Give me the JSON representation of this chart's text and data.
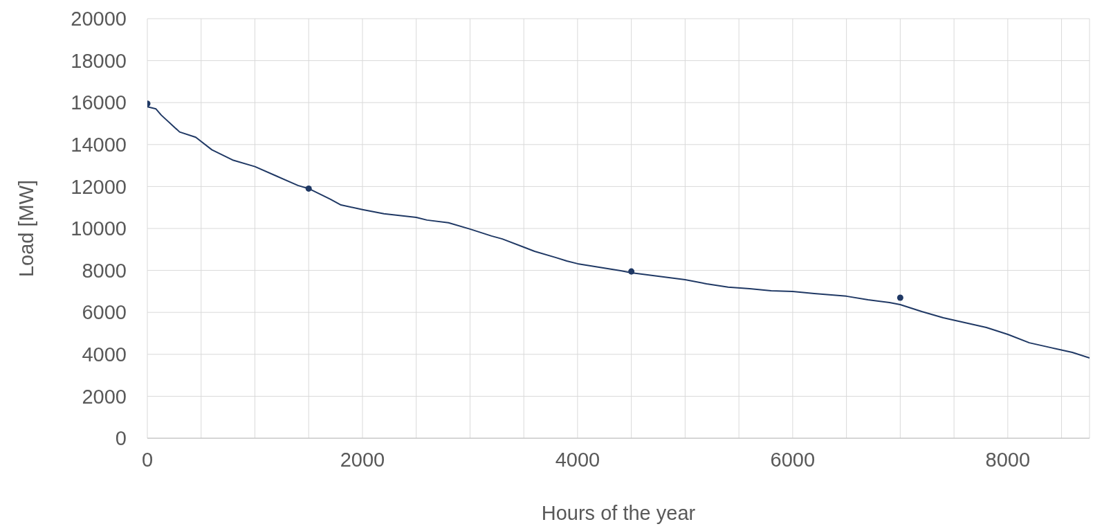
{
  "chart_data": {
    "type": "line",
    "xlabel": "Hours of the year",
    "ylabel": "Load [MW]",
    "xlim": [
      0,
      8760
    ],
    "xticks": [
      0,
      {
        "value": 500,
        "label": null
      },
      {
        "value": 1000,
        "label": null
      },
      {
        "value": 1500,
        "label": null
      },
      2000,
      {
        "value": 2500,
        "label": null
      },
      {
        "value": 3000,
        "label": null
      },
      {
        "value": 3500,
        "label": null
      },
      4000,
      {
        "value": 4500,
        "label": null
      },
      {
        "value": 5000,
        "label": null
      },
      {
        "value": 5500,
        "label": null
      },
      6000,
      {
        "value": 6500,
        "label": null
      },
      {
        "value": 7000,
        "label": null
      },
      {
        "value": 7500,
        "label": null
      },
      8000,
      {
        "value": 8500,
        "label": null
      }
    ],
    "ylim": [
      0,
      20000
    ],
    "yticks": [
      0,
      2000,
      4000,
      6000,
      8000,
      10000,
      12000,
      14000,
      16000,
      18000,
      20000
    ],
    "grid": true,
    "legend": false,
    "series": [
      {
        "color": "#1f3864",
        "x": [
          0,
          80,
          130,
          300,
          450,
          600,
          800,
          1000,
          1200,
          1400,
          1500,
          1700,
          1800,
          2000,
          2200,
          2500,
          2600,
          2800,
          3000,
          3200,
          3300,
          3500,
          3600,
          3800,
          3900,
          4000,
          4200,
          4400,
          4500,
          4800,
          5000,
          5200,
          5400,
          5600,
          5800,
          6000,
          6200,
          6500,
          6700,
          6900,
          7000,
          7200,
          7400,
          7600,
          7800,
          8000,
          8200,
          8400,
          8600,
          8760
        ],
        "values": [
          15800,
          15700,
          15400,
          14600,
          14350,
          13750,
          13250,
          12950,
          12500,
          12050,
          11900,
          11400,
          11120,
          10900,
          10700,
          10530,
          10400,
          10270,
          9970,
          9640,
          9500,
          9110,
          8910,
          8610,
          8450,
          8320,
          8150,
          7990,
          7890,
          7690,
          7560,
          7360,
          7200,
          7130,
          7030,
          7000,
          6900,
          6770,
          6600,
          6470,
          6370,
          6040,
          5740,
          5510,
          5280,
          4950,
          4550,
          4320,
          4090,
          3830
        ]
      },
      {
        "type": "scatter",
        "color": "#1f3864",
        "marker": "circle",
        "x": [
          0,
          1500,
          4500,
          7000
        ],
        "values": [
          15950,
          11900,
          7950,
          6700
        ]
      }
    ]
  }
}
